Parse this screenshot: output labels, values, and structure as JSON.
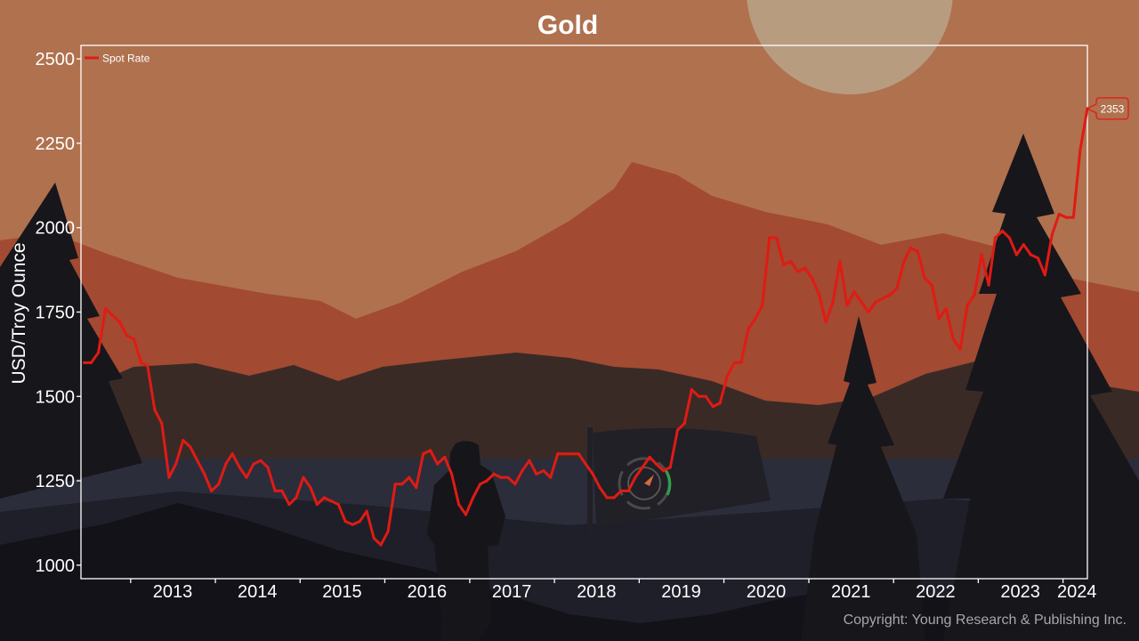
{
  "chart_data": {
    "type": "line",
    "title": "Gold",
    "xlabel": "",
    "ylabel": "USD/Troy Ounce",
    "ylim": [
      960,
      2540
    ],
    "yticks": [
      1000,
      1250,
      1500,
      1750,
      2000,
      2250,
      2500
    ],
    "x_tick_labels": [
      "2013",
      "2014",
      "2015",
      "2016",
      "2017",
      "2018",
      "2019",
      "2020",
      "2021",
      "2022",
      "2023",
      "2024"
    ],
    "xlim": [
      "2012-06-01",
      "2024-04-15"
    ],
    "grid": false,
    "legend_position": "top-left",
    "series": [
      {
        "name": "Spot Rate",
        "color": "#e01b14",
        "x": [
          "2012-06",
          "2012-07",
          "2012-08",
          "2012-09",
          "2012-10",
          "2012-11",
          "2012-12",
          "2013-01",
          "2013-02",
          "2013-03",
          "2013-04",
          "2013-05",
          "2013-06",
          "2013-07",
          "2013-08",
          "2013-09",
          "2013-10",
          "2013-11",
          "2013-12",
          "2014-01",
          "2014-02",
          "2014-03",
          "2014-04",
          "2014-05",
          "2014-06",
          "2014-07",
          "2014-08",
          "2014-09",
          "2014-10",
          "2014-11",
          "2014-12",
          "2015-01",
          "2015-02",
          "2015-03",
          "2015-04",
          "2015-05",
          "2015-06",
          "2015-07",
          "2015-08",
          "2015-09",
          "2015-10",
          "2015-11",
          "2015-12",
          "2016-01",
          "2016-02",
          "2016-03",
          "2016-04",
          "2016-05",
          "2016-06",
          "2016-07",
          "2016-08",
          "2016-09",
          "2016-10",
          "2016-11",
          "2016-12",
          "2017-01",
          "2017-02",
          "2017-03",
          "2017-04",
          "2017-05",
          "2017-06",
          "2017-07",
          "2017-08",
          "2017-09",
          "2017-10",
          "2017-11",
          "2017-12",
          "2018-01",
          "2018-02",
          "2018-03",
          "2018-04",
          "2018-05",
          "2018-06",
          "2018-07",
          "2018-08",
          "2018-09",
          "2018-10",
          "2018-11",
          "2018-12",
          "2019-01",
          "2019-02",
          "2019-03",
          "2019-04",
          "2019-05",
          "2019-06",
          "2019-07",
          "2019-08",
          "2019-09",
          "2019-10",
          "2019-11",
          "2019-12",
          "2020-01",
          "2020-02",
          "2020-03",
          "2020-04",
          "2020-05",
          "2020-06",
          "2020-07",
          "2020-08",
          "2020-09",
          "2020-10",
          "2020-11",
          "2020-12",
          "2021-01",
          "2021-02",
          "2021-03",
          "2021-04",
          "2021-05",
          "2021-06",
          "2021-07",
          "2021-08",
          "2021-09",
          "2021-10",
          "2021-11",
          "2021-12",
          "2022-01",
          "2022-02",
          "2022-03",
          "2022-04",
          "2022-05",
          "2022-06",
          "2022-07",
          "2022-08",
          "2022-09",
          "2022-10",
          "2022-11",
          "2022-12",
          "2023-01",
          "2023-02",
          "2023-03",
          "2023-04",
          "2023-05",
          "2023-06",
          "2023-07",
          "2023-08",
          "2023-09",
          "2023-10",
          "2023-11",
          "2023-12",
          "2024-01",
          "2024-02",
          "2024-03",
          "2024-04"
        ],
        "values": [
          1600,
          1600,
          1630,
          1760,
          1740,
          1720,
          1680,
          1670,
          1600,
          1590,
          1460,
          1420,
          1260,
          1300,
          1370,
          1350,
          1310,
          1270,
          1220,
          1240,
          1300,
          1330,
          1290,
          1260,
          1300,
          1310,
          1290,
          1220,
          1220,
          1180,
          1200,
          1260,
          1230,
          1180,
          1200,
          1190,
          1180,
          1130,
          1120,
          1130,
          1160,
          1080,
          1060,
          1100,
          1240,
          1240,
          1260,
          1230,
          1330,
          1340,
          1300,
          1320,
          1270,
          1180,
          1150,
          1200,
          1240,
          1250,
          1270,
          1260,
          1260,
          1240,
          1280,
          1310,
          1270,
          1280,
          1260,
          1330,
          1330,
          1330,
          1330,
          1300,
          1270,
          1230,
          1200,
          1200,
          1220,
          1220,
          1260,
          1290,
          1320,
          1300,
          1280,
          1290,
          1400,
          1420,
          1520,
          1500,
          1500,
          1470,
          1480,
          1560,
          1600,
          1600,
          1700,
          1730,
          1770,
          1970,
          1970,
          1890,
          1900,
          1870,
          1880,
          1850,
          1800,
          1720,
          1780,
          1900,
          1770,
          1810,
          1780,
          1750,
          1780,
          1790,
          1800,
          1820,
          1900,
          1940,
          1930,
          1850,
          1830,
          1730,
          1760,
          1670,
          1640,
          1770,
          1800,
          1920,
          1830,
          1970,
          1990,
          1970,
          1920,
          1950,
          1920,
          1910,
          1860,
          1980,
          2040,
          2030,
          2030,
          2230,
          2353
        ]
      }
    ],
    "annotations": [
      {
        "label": "2353",
        "x": "2024-04",
        "y": 2353
      }
    ]
  },
  "footer": {
    "copyright": "Copyright: Young Research & Publishing Inc."
  },
  "colors": {
    "background": "#b0714f",
    "line": "#e01b14",
    "axis": "#ffffff",
    "copyright_text": "#a7a7a7"
  }
}
